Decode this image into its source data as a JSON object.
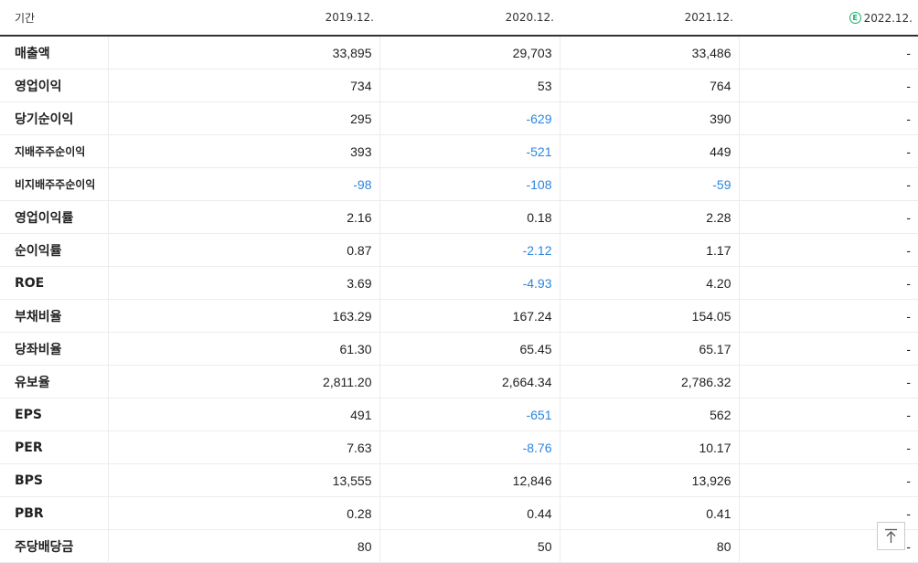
{
  "header": {
    "label": "기간",
    "periods": [
      "2019.12.",
      "2020.12.",
      "2021.12.",
      "2022.12."
    ],
    "estimate_badge": "E"
  },
  "rows": [
    {
      "label": "매출액",
      "values": [
        "33,895",
        "29,703",
        "33,486",
        "-"
      ],
      "neg": [
        false,
        false,
        false,
        false
      ],
      "small": false,
      "group_start": false
    },
    {
      "label": "영업이익",
      "values": [
        "734",
        "53",
        "764",
        "-"
      ],
      "neg": [
        false,
        false,
        false,
        false
      ],
      "small": false,
      "group_start": false
    },
    {
      "label": "당기순이익",
      "values": [
        "295",
        "-629",
        "390",
        "-"
      ],
      "neg": [
        false,
        true,
        false,
        false
      ],
      "small": false,
      "group_start": false
    },
    {
      "label": "지배주주순이익",
      "values": [
        "393",
        "-521",
        "449",
        "-"
      ],
      "neg": [
        false,
        true,
        false,
        false
      ],
      "small": true,
      "group_start": false
    },
    {
      "label": "비지배주주순이익",
      "values": [
        "-98",
        "-108",
        "-59",
        "-"
      ],
      "neg": [
        true,
        true,
        true,
        false
      ],
      "small": true,
      "group_start": false
    },
    {
      "label": "영업이익률",
      "values": [
        "2.16",
        "0.18",
        "2.28",
        "-"
      ],
      "neg": [
        false,
        false,
        false,
        false
      ],
      "small": false,
      "group_start": true
    },
    {
      "label": "순이익률",
      "values": [
        "0.87",
        "-2.12",
        "1.17",
        "-"
      ],
      "neg": [
        false,
        true,
        false,
        false
      ],
      "small": false,
      "group_start": false
    },
    {
      "label": "ROE",
      "values": [
        "3.69",
        "-4.93",
        "4.20",
        "-"
      ],
      "neg": [
        false,
        true,
        false,
        false
      ],
      "small": false,
      "group_start": false
    },
    {
      "label": "부채비율",
      "values": [
        "163.29",
        "167.24",
        "154.05",
        "-"
      ],
      "neg": [
        false,
        false,
        false,
        false
      ],
      "small": false,
      "group_start": true
    },
    {
      "label": "당좌비율",
      "values": [
        "61.30",
        "65.45",
        "65.17",
        "-"
      ],
      "neg": [
        false,
        false,
        false,
        false
      ],
      "small": false,
      "group_start": false
    },
    {
      "label": "유보율",
      "values": [
        "2,811.20",
        "2,664.34",
        "2,786.32",
        "-"
      ],
      "neg": [
        false,
        false,
        false,
        false
      ],
      "small": false,
      "group_start": false
    },
    {
      "label": "EPS",
      "values": [
        "491",
        "-651",
        "562",
        "-"
      ],
      "neg": [
        false,
        true,
        false,
        false
      ],
      "small": false,
      "group_start": true
    },
    {
      "label": "PER",
      "values": [
        "7.63",
        "-8.76",
        "10.17",
        "-"
      ],
      "neg": [
        false,
        true,
        false,
        false
      ],
      "small": false,
      "group_start": false
    },
    {
      "label": "BPS",
      "values": [
        "13,555",
        "12,846",
        "13,926",
        "-"
      ],
      "neg": [
        false,
        false,
        false,
        false
      ],
      "small": false,
      "group_start": false
    },
    {
      "label": "PBR",
      "values": [
        "0.28",
        "0.44",
        "0.41",
        "-"
      ],
      "neg": [
        false,
        false,
        false,
        false
      ],
      "small": false,
      "group_start": false
    },
    {
      "label": "주당배당금",
      "values": [
        "80",
        "50",
        "80",
        "-"
      ],
      "neg": [
        false,
        false,
        false,
        false
      ],
      "small": false,
      "group_start": true
    }
  ],
  "colors": {
    "negative": "#2b85e0",
    "estimate": "#17b26a"
  },
  "scroll_top_icon": "arrow-up-to-line-icon"
}
